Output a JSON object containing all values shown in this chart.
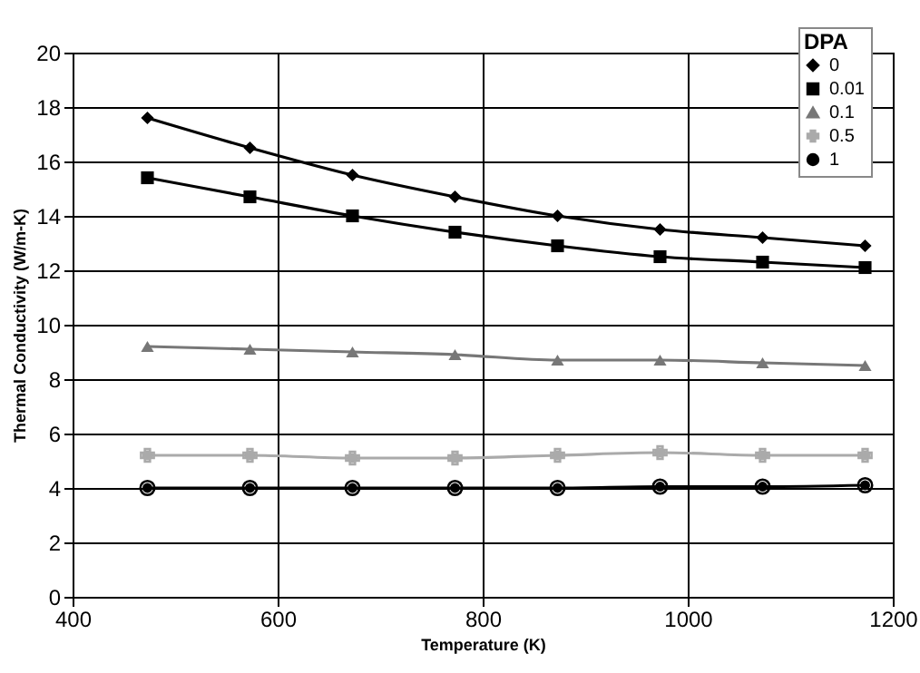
{
  "chart_data": {
    "type": "line",
    "xlabel": "Temperature (K)",
    "ylabel": "Thermal Conductivity (W/m-K)",
    "legend_title": "DPA",
    "x": [
      473,
      573,
      673,
      773,
      873,
      973,
      1073,
      1173
    ],
    "series": [
      {
        "name": "0",
        "color": "#000000",
        "marker": "diamond",
        "values": [
          17.6,
          16.5,
          15.5,
          14.7,
          14.0,
          13.5,
          13.2,
          12.9
        ]
      },
      {
        "name": "0.01",
        "color": "#000000",
        "marker": "square",
        "values": [
          15.4,
          14.7,
          14.0,
          13.4,
          12.9,
          12.5,
          12.3,
          12.1
        ]
      },
      {
        "name": "0.1",
        "color": "#777777",
        "marker": "triangle",
        "values": [
          9.2,
          9.1,
          9.0,
          8.9,
          8.7,
          8.7,
          8.6,
          8.5
        ]
      },
      {
        "name": "0.5",
        "color": "#aaaaaa",
        "marker": "cross",
        "values": [
          5.2,
          5.2,
          5.1,
          5.1,
          5.2,
          5.3,
          5.2,
          5.2
        ]
      },
      {
        "name": "1",
        "color": "#000000",
        "marker": "circle",
        "values": [
          4.0,
          4.0,
          4.0,
          4.0,
          4.0,
          4.05,
          4.05,
          4.1
        ]
      }
    ],
    "xlim": [
      400,
      1200
    ],
    "xticks": [
      400,
      600,
      800,
      1000,
      1200
    ],
    "ylim": [
      0,
      20
    ],
    "yticks": [
      0,
      2,
      4,
      6,
      8,
      10,
      12,
      14,
      16,
      18,
      20
    ],
    "grid": true,
    "legend": "top right",
    "line_style": "solid"
  }
}
